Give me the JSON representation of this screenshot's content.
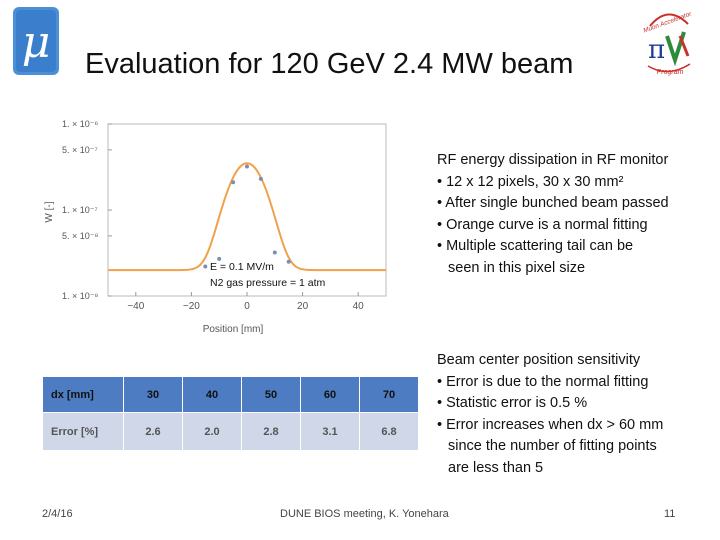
{
  "title": "Evaluation for 120 GeV 2.4 MW beam",
  "logos": {
    "left_symbol": "μ",
    "right_line1": "Muon Accelerator",
    "right_line2": "Program"
  },
  "chart_data": {
    "type": "scatter",
    "title": "",
    "xlabel": "Position [mm]",
    "ylabel": "W [-]",
    "log_y": true,
    "xlim": [
      -50,
      50
    ],
    "x_ticks": [
      -40,
      -20,
      0,
      20,
      40
    ],
    "x_tick_labels": [
      "−40",
      "−20",
      "0",
      "20",
      "40"
    ],
    "y_ticks": [
      1e-08,
      5e-08,
      1e-07,
      5e-07,
      1e-06
    ],
    "y_tick_labels": [
      "1. × 10⁻⁸",
      "5. × 10⁻⁸",
      "1. × 10⁻⁷",
      "5. × 10⁻⁷",
      "1. × 10⁻⁶"
    ],
    "annotation_line1": "E = 0.1 MV/m",
    "annotation_line2": "N2 gas pressure = 1 atm",
    "colors": {
      "points": "#7b8fb2",
      "fit": "#f0a14a"
    },
    "points": [
      {
        "x": -10,
        "y": 2.7e-08
      },
      {
        "x": -5,
        "y": 2.1e-07
      },
      {
        "x": 0,
        "y": 3.2e-07
      },
      {
        "x": 5,
        "y": 2.3e-07
      },
      {
        "x": 10,
        "y": 3.2e-08
      },
      {
        "x": -15,
        "y": 2.2e-08
      },
      {
        "x": 15,
        "y": 2.5e-08
      }
    ],
    "fit": {
      "type": "normal",
      "mean": 0,
      "sigma": 5.5,
      "amplitude": 3.3e-07,
      "baseline": 2e-08
    }
  },
  "block1": {
    "heading": "RF energy dissipation in RF monitor",
    "bullets": [
      "• 12 x 12 pixels, 30 x 30 mm²",
      "• After single bunched beam passed",
      "• Orange curve is a normal fitting",
      "• Multiple scattering tail can be"
    ],
    "continuation": "seen in this pixel size"
  },
  "block2": {
    "heading": "Beam center position sensitivity",
    "bullets": [
      "• Error is due to the normal fitting",
      "• Statistic error is 0.5 %",
      "• Error increases when dx > 60 mm"
    ],
    "continuation1": "since the number of fitting points",
    "continuation2": "are less than 5"
  },
  "table": {
    "header": [
      "dx [mm]",
      "30",
      "40",
      "50",
      "60",
      "70"
    ],
    "row": [
      "Error [%]",
      "2.6",
      "2.0",
      "2.8",
      "3.1",
      "6.8"
    ]
  },
  "footer": {
    "date": "2/4/16",
    "center": "DUNE BIOS meeting, K. Yonehara",
    "page": "11"
  }
}
